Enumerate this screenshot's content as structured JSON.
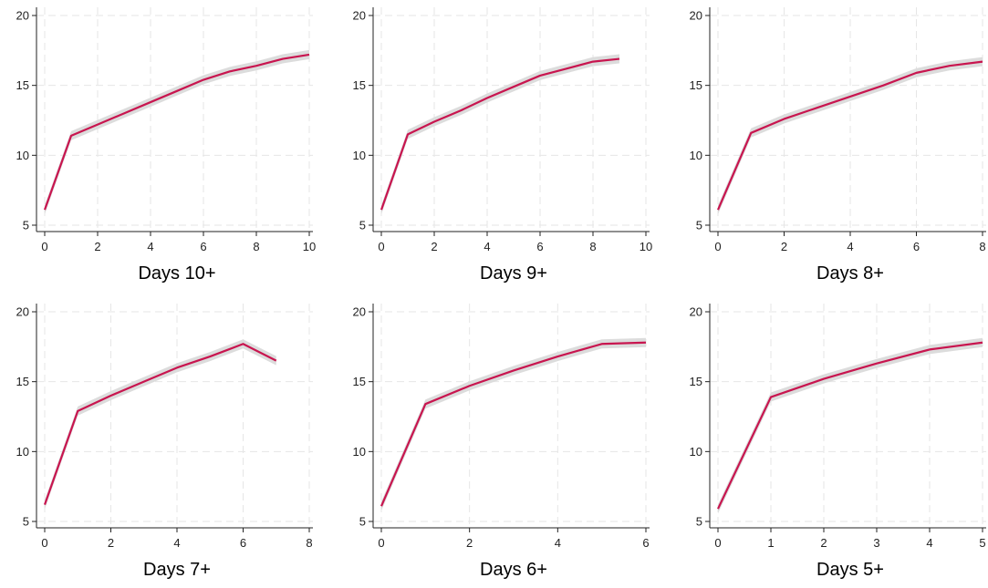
{
  "colors": {
    "line": "#c8154f",
    "band": "#dcdcdc",
    "grid": "#e6e6e6",
    "axis": "#222222",
    "background": "#ffffff"
  },
  "chart_data": [
    {
      "type": "line",
      "title": "Days 10+",
      "xlim": [
        0,
        10
      ],
      "ylim": [
        5,
        20
      ],
      "xticks": [
        0,
        2,
        4,
        6,
        8,
        10
      ],
      "yticks": [
        5,
        10,
        15,
        20
      ],
      "grid": true,
      "confidence_band": true,
      "x": [
        0,
        1,
        2,
        3,
        4,
        5,
        6,
        7,
        8,
        9,
        10
      ],
      "y": [
        6.1,
        11.4,
        12.2,
        13.0,
        13.8,
        14.6,
        15.4,
        16.0,
        16.4,
        16.9,
        17.2
      ]
    },
    {
      "type": "line",
      "title": "Days 9+",
      "xlim": [
        0,
        10
      ],
      "ylim": [
        5,
        20
      ],
      "xticks": [
        0,
        2,
        4,
        6,
        8,
        10
      ],
      "yticks": [
        5,
        10,
        15,
        20
      ],
      "grid": true,
      "confidence_band": true,
      "x": [
        0,
        1,
        2,
        3,
        4,
        5,
        6,
        7,
        8,
        9
      ],
      "y": [
        6.1,
        11.5,
        12.4,
        13.2,
        14.1,
        14.9,
        15.7,
        16.2,
        16.7,
        16.9
      ]
    },
    {
      "type": "line",
      "title": "Days 8+",
      "xlim": [
        0,
        8
      ],
      "ylim": [
        5,
        20
      ],
      "xticks": [
        0,
        2,
        4,
        6,
        8
      ],
      "yticks": [
        5,
        10,
        15,
        20
      ],
      "grid": true,
      "confidence_band": true,
      "x": [
        0,
        1,
        2,
        3,
        4,
        5,
        6,
        7,
        8
      ],
      "y": [
        6.1,
        11.6,
        12.6,
        13.4,
        14.2,
        15.0,
        15.9,
        16.4,
        16.7
      ]
    },
    {
      "type": "line",
      "title": "Days 7+",
      "xlim": [
        0,
        8
      ],
      "ylim": [
        5,
        20
      ],
      "xticks": [
        0,
        2,
        4,
        6,
        8
      ],
      "yticks": [
        5,
        10,
        15,
        20
      ],
      "grid": true,
      "confidence_band": true,
      "x": [
        0,
        1,
        2,
        3,
        4,
        5,
        6,
        7
      ],
      "y": [
        6.2,
        12.9,
        14.0,
        15.0,
        16.0,
        16.8,
        17.7,
        16.5
      ]
    },
    {
      "type": "line",
      "title": "Days 6+",
      "xlim": [
        0,
        6
      ],
      "ylim": [
        5,
        20
      ],
      "xticks": [
        0,
        2,
        4,
        6
      ],
      "yticks": [
        5,
        10,
        15,
        20
      ],
      "grid": true,
      "confidence_band": true,
      "x": [
        0,
        1,
        2,
        3,
        4,
        5,
        6
      ],
      "y": [
        6.1,
        13.4,
        14.7,
        15.8,
        16.8,
        17.7,
        17.8
      ]
    },
    {
      "type": "line",
      "title": "Days 5+",
      "xlim": [
        0,
        5
      ],
      "ylim": [
        5,
        20
      ],
      "xticks": [
        0,
        1,
        2,
        3,
        4,
        5
      ],
      "yticks": [
        5,
        10,
        15,
        20
      ],
      "grid": true,
      "confidence_band": true,
      "x": [
        0,
        1,
        2,
        3,
        4,
        5
      ],
      "y": [
        5.9,
        13.9,
        15.2,
        16.3,
        17.3,
        17.8
      ]
    }
  ]
}
